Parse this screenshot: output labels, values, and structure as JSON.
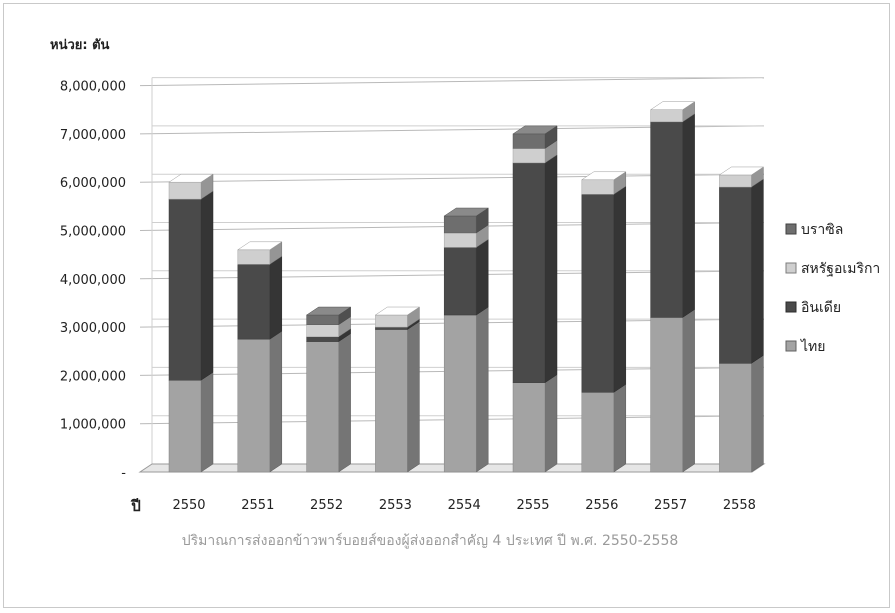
{
  "chart_data": {
    "type": "bar",
    "stacked": true,
    "title": "",
    "unit_label": "หน่วย: ตัน",
    "xlabel": "ปี",
    "caption": "ปริมาณการส่งออกข้าวพาร์บอยส์ของผู้ส่งออกสำคัญ 4 ประเทศ ปี พ.ศ. 2550-2558",
    "categories": [
      "2550",
      "2551",
      "2552",
      "2553",
      "2554",
      "2555",
      "2556",
      "2557",
      "2558"
    ],
    "ylim": [
      0,
      8000000
    ],
    "yticks": [
      "-",
      "1,000,000",
      "2,000,000",
      "3,000,000",
      "4,000,000",
      "5,000,000",
      "6,000,000",
      "7,000,000",
      "8,000,000"
    ],
    "grid": true,
    "legend_position": "right",
    "series": [
      {
        "name": "ไทย",
        "color": "#a3a3a3",
        "values": [
          1900000,
          2750000,
          2700000,
          2950000,
          3250000,
          1850000,
          1650000,
          3200000,
          2250000
        ]
      },
      {
        "name": "อินเดีย",
        "color": "#4a4a4a",
        "values": [
          3750000,
          1550000,
          100000,
          50000,
          1400000,
          4550000,
          4100000,
          4050000,
          3650000
        ]
      },
      {
        "name": "สหรัฐอเมริกา",
        "color": "#cfcfcf",
        "values": [
          350000,
          300000,
          250000,
          250000,
          300000,
          300000,
          300000,
          250000,
          250000
        ]
      },
      {
        "name": "บราซิล",
        "color": "#6e6e6e",
        "values": [
          0,
          0,
          200000,
          0,
          350000,
          300000,
          0,
          0,
          0
        ]
      }
    ]
  }
}
